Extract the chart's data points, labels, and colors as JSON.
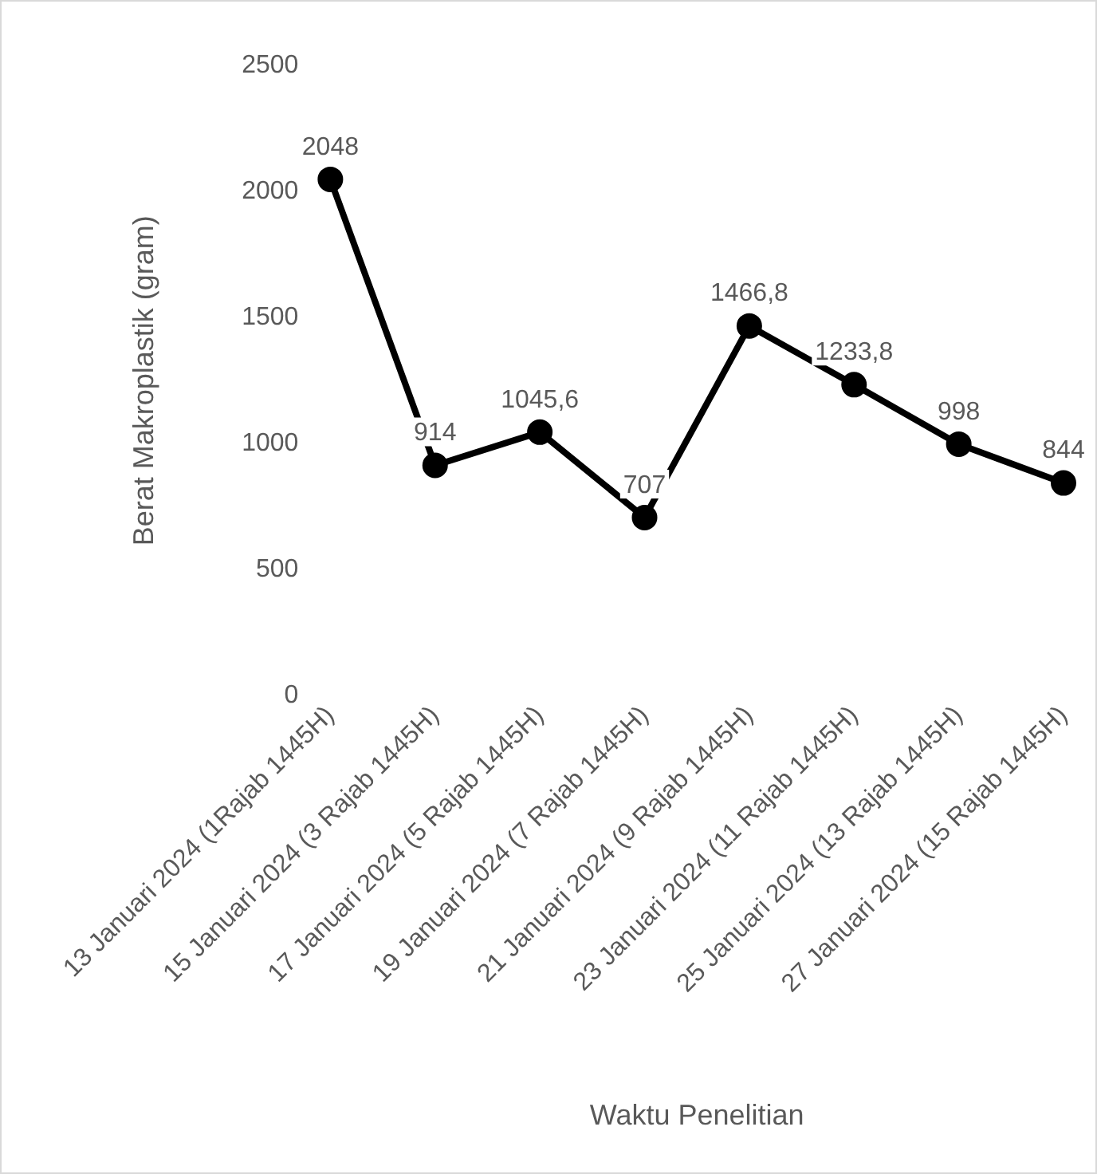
{
  "chart_data": {
    "type": "line",
    "xlabel": "Waktu Penelitian",
    "ylabel": "Berat Makroplastik (gram)",
    "categories": [
      "13 Januari 2024 (1Rajab 1445H)",
      "15 Januari 2024 (3 Rajab 1445H)",
      "17 Januari 2024 (5 Rajab 1445H)",
      "19 Januari 2024 (7 Rajab 1445H)",
      "21 Januari 2024 (9 Rajab 1445H)",
      "23 Januari 2024 (11 Rajab 1445H)",
      "25 Januari 2024 (13 Rajab 1445H)",
      "27 Januari 2024 (15 Rajab 1445H)"
    ],
    "series": [
      {
        "color": "#000000",
        "values": [
          2048,
          914,
          1045.6,
          707,
          1466.8,
          1233.8,
          998,
          844
        ],
        "value_labels": [
          "2048",
          "914",
          "1045,6",
          "707",
          "1466,8",
          "1233,8",
          "998",
          "844"
        ]
      }
    ],
    "ylim": [
      0,
      2500
    ],
    "yticks": [
      0,
      500,
      1000,
      1500,
      2000,
      2500
    ],
    "grid": false,
    "legend": false,
    "marker": "circle",
    "line_style": "solid"
  }
}
